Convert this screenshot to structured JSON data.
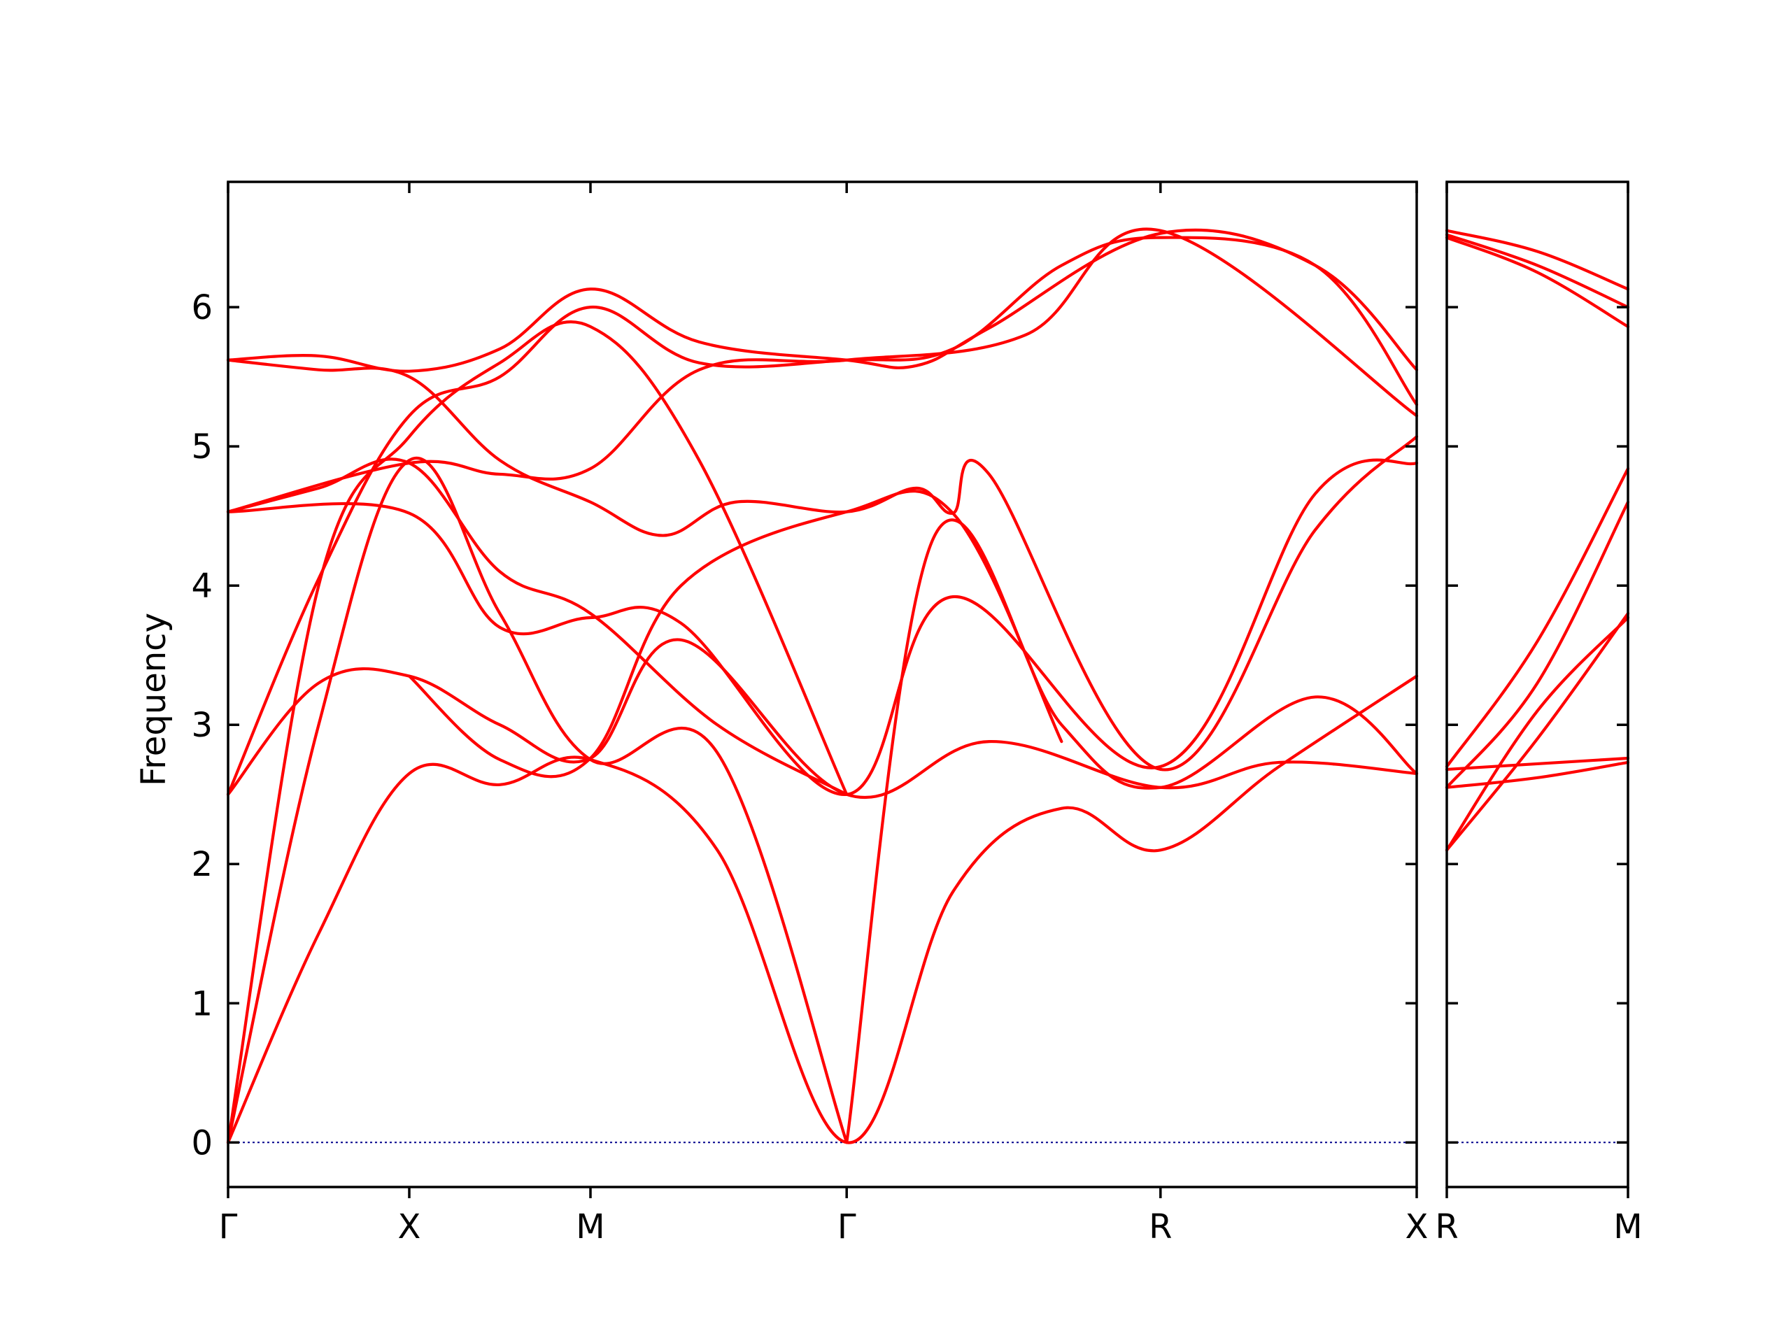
{
  "chart_data": {
    "type": "line",
    "title": "",
    "xlabel": "",
    "ylabel": "Frequency",
    "ylim": [
      -0.32,
      6.9
    ],
    "yticks": [
      0,
      1,
      2,
      3,
      4,
      5,
      6
    ],
    "grid": false,
    "legend": "none",
    "colors": {
      "bands": "#ff0000",
      "zero_line": "#00008b",
      "axes": "#000000"
    },
    "panels": [
      {
        "name": "main",
        "xticks": [
          {
            "label": "Γ",
            "x": 0
          },
          {
            "label": "X",
            "x": 0.5
          },
          {
            "label": "M",
            "x": 1.0
          },
          {
            "label": "Γ",
            "x": 1.707
          },
          {
            "label": "R",
            "x": 2.573
          },
          {
            "label": "X",
            "x": 3.28
          }
        ],
        "xlim": [
          0,
          3.28
        ],
        "series": [
          {
            "values": [
              [
                0,
                0
              ],
              [
                0.25,
                1.5
              ],
              [
                0.5,
                2.65
              ],
              [
                0.75,
                2.57
              ],
              [
                1.0,
                2.75
              ],
              [
                1.35,
                2.1
              ],
              [
                1.707,
                0
              ],
              [
                2.0,
                1.8
              ],
              [
                2.3,
                2.4
              ],
              [
                2.573,
                2.1
              ],
              [
                2.9,
                2.7
              ],
              [
                3.28,
                3.35
              ]
            ]
          },
          {
            "values": [
              [
                0,
                0
              ],
              [
                0.25,
                3.0
              ],
              [
                0.5,
                4.9
              ],
              [
                0.75,
                3.8
              ],
              [
                1.0,
                2.75
              ],
              [
                1.35,
                2.8
              ],
              [
                1.707,
                0
              ]
            ]
          },
          {
            "values": [
              [
                1.707,
                0
              ],
              [
                1.95,
                4.36
              ],
              [
                2.3,
                3.0
              ],
              [
                2.573,
                2.55
              ],
              [
                3.0,
                3.2
              ],
              [
                3.28,
                2.65
              ]
            ]
          },
          {
            "values": [
              [
                0,
                0
              ],
              [
                0.25,
                4.0
              ],
              [
                0.5,
                5.07
              ],
              [
                0.75,
                5.6
              ],
              [
                1.0,
                5.86
              ],
              [
                1.3,
                4.9
              ],
              [
                1.707,
                2.5
              ]
            ]
          },
          {
            "values": [
              [
                0,
                2.5
              ],
              [
                0.25,
                3.3
              ],
              [
                0.5,
                3.35
              ],
              [
                0.75,
                3.0
              ],
              [
                1.0,
                2.76
              ],
              [
                1.25,
                3.61
              ],
              [
                1.707,
                2.5
              ],
              [
                2.1,
                2.88
              ],
              [
                2.573,
                2.55
              ],
              [
                2.9,
                2.73
              ],
              [
                3.28,
                2.65
              ]
            ]
          },
          {
            "values": [
              [
                0,
                2.5
              ],
              [
                0.25,
                4.05
              ],
              [
                0.5,
                5.22
              ],
              [
                0.75,
                5.5
              ],
              [
                1.0,
                6.0
              ],
              [
                1.3,
                5.6
              ],
              [
                1.707,
                5.62
              ],
              [
                2.0,
                5.7
              ],
              [
                2.3,
                6.3
              ],
              [
                2.573,
                6.5
              ],
              [
                3.0,
                6.3
              ],
              [
                3.28,
                5.3
              ]
            ]
          },
          {
            "values": [
              [
                0,
                4.53
              ],
              [
                0.5,
                4.52
              ],
              [
                0.75,
                3.7
              ],
              [
                1.0,
                3.77
              ],
              [
                1.25,
                3.73
              ],
              [
                1.707,
                2.5
              ],
              [
                2.0,
                3.92
              ],
              [
                2.573,
                2.7
              ],
              [
                3.0,
                4.66
              ],
              [
                3.28,
                4.88
              ]
            ]
          },
          {
            "values": [
              [
                0,
                4.53
              ],
              [
                0.5,
                4.88
              ],
              [
                0.75,
                4.8
              ],
              [
                1.0,
                4.84
              ],
              [
                1.3,
                5.55
              ],
              [
                1.707,
                5.62
              ],
              [
                2.2,
                5.8
              ],
              [
                2.573,
                6.55
              ],
              [
                3.28,
                5.22
              ]
            ]
          },
          {
            "values": [
              [
                0,
                5.62
              ],
              [
                0.25,
                5.65
              ],
              [
                0.5,
                5.54
              ],
              [
                0.75,
                5.7
              ],
              [
                1.0,
                6.13
              ],
              [
                1.3,
                5.75
              ],
              [
                1.707,
                5.62
              ],
              [
                1.9,
                5.58
              ],
              [
                2.1,
                5.85
              ],
              [
                2.573,
                6.53
              ],
              [
                3.0,
                6.3
              ],
              [
                3.28,
                5.55
              ]
            ]
          },
          {
            "values": [
              [
                0,
                5.62
              ],
              [
                0.25,
                5.55
              ],
              [
                0.5,
                5.5
              ],
              [
                0.75,
                4.9
              ],
              [
                1.0,
                4.6
              ],
              [
                1.2,
                4.36
              ],
              [
                1.4,
                4.6
              ],
              [
                1.707,
                4.53
              ],
              [
                1.9,
                4.7
              ],
              [
                2.0,
                4.52
              ],
              [
                2.1,
                4.8
              ],
              [
                2.573,
                2.68
              ],
              [
                3.0,
                4.4
              ],
              [
                3.28,
                5.07
              ]
            ]
          },
          {
            "values": [
              [
                0,
                4.53
              ],
              [
                0.25,
                4.7
              ],
              [
                0.5,
                4.88
              ],
              [
                0.75,
                4.1
              ],
              [
                1.0,
                3.8
              ],
              [
                1.35,
                3.0
              ],
              [
                1.707,
                2.5
              ]
            ]
          },
          {
            "values": [
              [
                0.5,
                3.35
              ],
              [
                0.75,
                2.75
              ],
              [
                1.0,
                2.76
              ],
              [
                1.25,
                4.0
              ],
              [
                1.707,
                4.53
              ],
              [
                2.0,
                4.52
              ],
              [
                2.3,
                2.88
              ]
            ]
          }
        ]
      },
      {
        "name": "side",
        "xticks": [
          {
            "label": "R",
            "x": 0
          },
          {
            "label": "M",
            "x": 0.5
          }
        ],
        "xlim": [
          0,
          0.5
        ],
        "series": [
          {
            "values": [
              [
                0,
                6.55
              ],
              [
                0.25,
                6.4
              ],
              [
                0.5,
                6.13
              ]
            ]
          },
          {
            "values": [
              [
                0,
                6.52
              ],
              [
                0.25,
                6.3
              ],
              [
                0.5,
                6.0
              ]
            ]
          },
          {
            "values": [
              [
                0,
                6.5
              ],
              [
                0.25,
                6.25
              ],
              [
                0.5,
                5.86
              ]
            ]
          },
          {
            "values": [
              [
                0,
                2.7
              ],
              [
                0.25,
                3.6
              ],
              [
                0.5,
                4.84
              ]
            ]
          },
          {
            "values": [
              [
                0,
                2.55
              ],
              [
                0.25,
                3.3
              ],
              [
                0.5,
                4.6
              ]
            ]
          },
          {
            "values": [
              [
                0,
                2.1
              ],
              [
                0.25,
                2.9
              ],
              [
                0.5,
                3.8
              ]
            ]
          },
          {
            "values": [
              [
                0,
                2.1
              ],
              [
                0.25,
                3.1
              ],
              [
                0.5,
                3.77
              ]
            ]
          },
          {
            "values": [
              [
                0,
                2.68
              ],
              [
                0.25,
                2.72
              ],
              [
                0.5,
                2.76
              ]
            ]
          },
          {
            "values": [
              [
                0,
                2.55
              ],
              [
                0.25,
                2.62
              ],
              [
                0.5,
                2.73
              ]
            ]
          }
        ]
      }
    ]
  }
}
